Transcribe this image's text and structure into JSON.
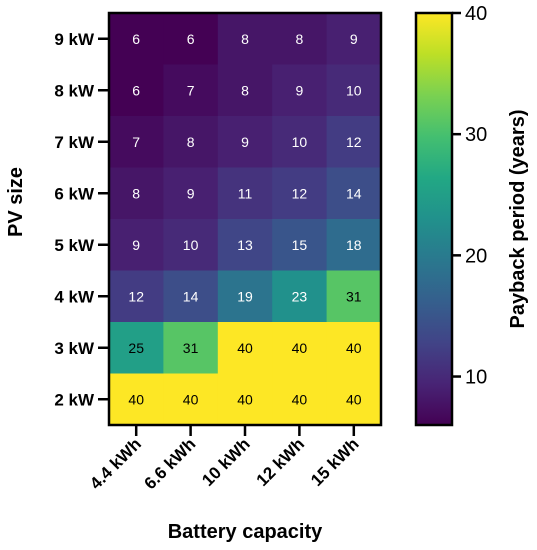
{
  "chart_data": {
    "type": "heatmap",
    "xlabel": "Battery capacity",
    "ylabel": "PV size",
    "colorbar_label": "Payback period (years)",
    "x_categories": [
      "4.4 kWh",
      "6.6 kWh",
      "10 kWh",
      "12 kWh",
      "15 kWh"
    ],
    "y_categories": [
      "9 kW",
      "8 kW",
      "7 kW",
      "6 kW",
      "5 kW",
      "4 kW",
      "3 kW",
      "2 kW"
    ],
    "values": [
      [
        6,
        6,
        8,
        8,
        9
      ],
      [
        6,
        7,
        8,
        9,
        10
      ],
      [
        7,
        8,
        9,
        10,
        12
      ],
      [
        8,
        9,
        11,
        12,
        14
      ],
      [
        9,
        10,
        13,
        15,
        18
      ],
      [
        12,
        14,
        19,
        23,
        31
      ],
      [
        25,
        31,
        40,
        40,
        40
      ],
      [
        40,
        40,
        40,
        40,
        40
      ]
    ],
    "colorbar_range": [
      6,
      40
    ],
    "colorbar_ticks": [
      "10",
      "20",
      "30",
      "40"
    ],
    "colormap": "viridis"
  }
}
